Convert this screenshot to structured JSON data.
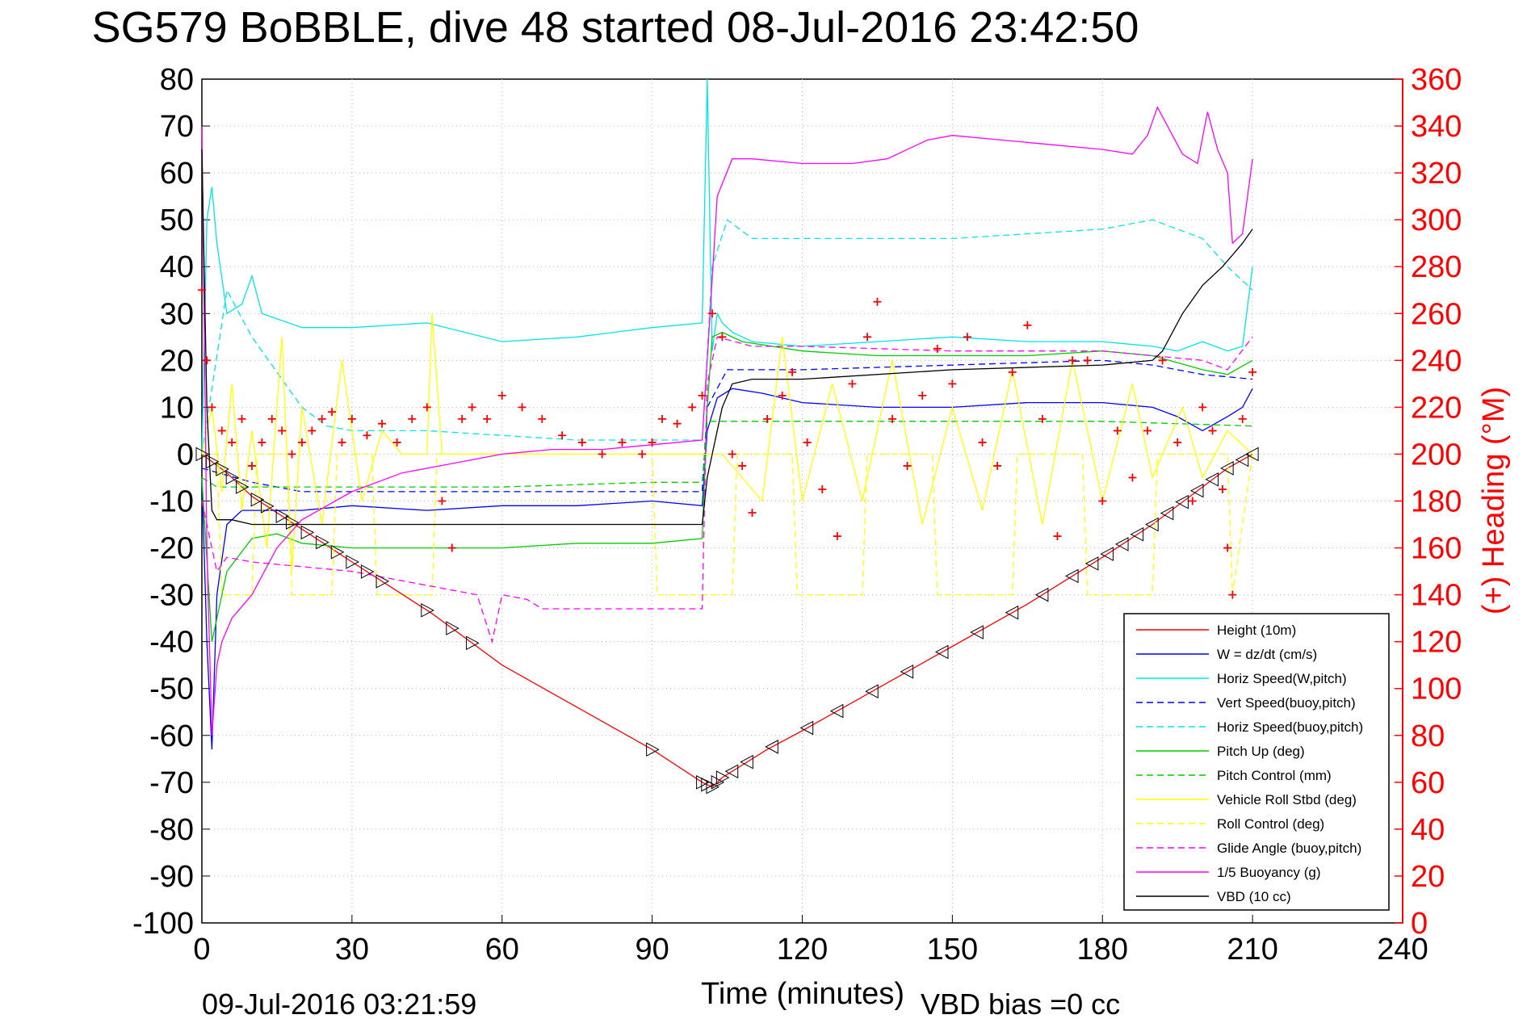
{
  "chart_data": {
    "type": "line",
    "title": "SG579 BoBBLE, dive 48 started 08-Jul-2016 23:42:50",
    "xlabel": "Time (minutes)",
    "ylabel_right": "(+) Heading (°M)",
    "footer_left": "09-Jul-2016 03:21:59",
    "footer_right": "VBD bias =0 cc",
    "xlim": [
      0,
      240
    ],
    "ylim": [
      -100,
      80
    ],
    "ylim_right": [
      0,
      360
    ],
    "x_ticks": [
      0,
      30,
      60,
      90,
      120,
      150,
      180,
      210,
      240
    ],
    "x_tick_labels": [
      "0",
      "30",
      "60",
      "90",
      "120",
      "150",
      "180",
      "210",
      "240"
    ],
    "y_ticks": [
      80,
      70,
      60,
      50,
      40,
      30,
      20,
      10,
      0,
      -10,
      -20,
      -30,
      -40,
      -50,
      -60,
      -70,
      -80,
      -90,
      -100
    ],
    "y_tick_labels": [
      "80",
      "70",
      "60",
      "50",
      "40",
      "30",
      "20",
      "10",
      "0",
      "-10",
      "-20",
      "-30",
      "-40",
      "-50",
      "-60",
      "-70",
      "-80",
      "-90",
      "-100"
    ],
    "y_right_ticks": [
      360,
      340,
      320,
      300,
      280,
      260,
      240,
      220,
      200,
      180,
      160,
      140,
      120,
      100,
      80,
      60,
      40,
      20,
      0
    ],
    "y_right_tick_labels": [
      "360",
      "340",
      "320",
      "300",
      "280",
      "260",
      "240",
      "220",
      "200",
      "180",
      "160",
      "140",
      "120",
      "100",
      "80",
      "60",
      "40",
      "20",
      "0"
    ],
    "grid": true,
    "legend_position": "bottom-right",
    "colors": {
      "right_axis": "#ff0000"
    },
    "legend": [
      {
        "label": "Height (10m)",
        "color": "#ff0000",
        "style": "solid"
      },
      {
        "label": "W = dz/dt (cm/s)",
        "color": "#0000ff",
        "style": "solid"
      },
      {
        "label": "Horiz Speed(W,pitch)",
        "color": "#00e5e5",
        "style": "solid"
      },
      {
        "label": "Vert Speed(buoy,pitch)",
        "color": "#0000ff",
        "style": "dashed"
      },
      {
        "label": "Horiz Speed(buoy,pitch)",
        "color": "#00e5e5",
        "style": "dashed"
      },
      {
        "label": "Pitch Up (deg)",
        "color": "#00cc00",
        "style": "solid"
      },
      {
        "label": "Pitch Control (mm)",
        "color": "#00cc00",
        "style": "dashed"
      },
      {
        "label": "Vehicle Roll Stbd (deg)",
        "color": "#ffff00",
        "style": "solid"
      },
      {
        "label": "Roll Control (deg)",
        "color": "#ffff00",
        "style": "dashed"
      },
      {
        "label": "Glide Angle (buoy,pitch)",
        "color": "#ff00ff",
        "style": "dashed"
      },
      {
        "label": "1/5 Buoyancy (g)",
        "color": "#ff00ff",
        "style": "solid"
      },
      {
        "label": "VBD (10 cc)",
        "color": "#000000",
        "style": "solid"
      }
    ],
    "series": [
      {
        "key": "height",
        "color": "#ff0000",
        "style": "solid",
        "x": [
          0,
          5,
          10,
          20,
          30,
          46,
          60,
          75,
          90,
          100,
          102,
          104,
          113,
          120,
          135,
          150,
          165,
          180,
          190,
          200,
          205,
          210
        ],
        "y": [
          0,
          -4,
          -9,
          -16,
          -23,
          -34,
          -45,
          -54,
          -63,
          -70,
          -71,
          -69,
          -63,
          -59,
          -50,
          -41,
          -32,
          -22,
          -15,
          -7,
          -3,
          0
        ]
      },
      {
        "key": "w",
        "color": "#0000ff",
        "style": "solid",
        "x": [
          0,
          1,
          2,
          3,
          5,
          8,
          12,
          20,
          30,
          45,
          60,
          75,
          90,
          100,
          101,
          103,
          106,
          112,
          120,
          135,
          150,
          165,
          180,
          190,
          195,
          200,
          205,
          208,
          210
        ],
        "y": [
          -5,
          -40,
          -63,
          -30,
          -15,
          -12,
          -12,
          -12,
          -11,
          -12,
          -11,
          -11,
          -10,
          -11,
          5,
          12,
          14,
          13,
          11,
          10,
          10,
          11,
          11,
          10,
          8,
          5,
          8,
          10,
          14
        ]
      },
      {
        "key": "horiz_w",
        "color": "#00e5e5",
        "style": "solid",
        "x": [
          0,
          1,
          2,
          3,
          5,
          8,
          10,
          12,
          20,
          30,
          45,
          60,
          75,
          90,
          100,
          101,
          102,
          103,
          104,
          106,
          110,
          120,
          135,
          150,
          165,
          180,
          190,
          195,
          200,
          205,
          208,
          210
        ],
        "y": [
          0,
          50,
          57,
          45,
          30,
          32,
          38,
          30,
          27,
          27,
          28,
          24,
          25,
          27,
          28,
          80,
          22,
          30,
          28,
          26,
          24,
          23,
          24,
          25,
          24,
          24,
          23,
          22,
          24,
          22,
          23,
          40
        ]
      },
      {
        "key": "vert_buoy",
        "color": "#0000ff",
        "style": "dashed",
        "x": [
          0,
          10,
          20,
          30,
          45,
          60,
          75,
          90,
          100,
          101,
          105,
          120,
          150,
          180,
          190,
          200,
          210
        ],
        "y": [
          -3,
          -6,
          -8,
          -8,
          -8,
          -8,
          -8,
          -8,
          -8,
          10,
          18,
          18,
          19,
          20,
          19,
          17,
          16
        ]
      },
      {
        "key": "horiz_buoy",
        "color": "#00e5e5",
        "style": "dashed",
        "x": [
          0,
          5,
          10,
          20,
          25,
          30,
          45,
          60,
          75,
          90,
          100,
          102,
          105,
          110,
          120,
          150,
          180,
          190,
          200,
          205,
          210
        ],
        "y": [
          0,
          35,
          25,
          10,
          6,
          5,
          5,
          4,
          3,
          3,
          3,
          40,
          50,
          46,
          46,
          46,
          48,
          50,
          46,
          40,
          35
        ]
      },
      {
        "key": "pitch_up",
        "color": "#00cc00",
        "style": "solid",
        "x": [
          0,
          2,
          5,
          10,
          15,
          20,
          30,
          45,
          60,
          75,
          90,
          100,
          101,
          102,
          104,
          108,
          120,
          135,
          150,
          165,
          180,
          190,
          200,
          205,
          210
        ],
        "y": [
          -5,
          -40,
          -25,
          -18,
          -17,
          -19,
          -20,
          -20,
          -20,
          -19,
          -19,
          -18,
          10,
          25,
          26,
          24,
          22,
          21,
          21,
          21,
          22,
          21,
          18,
          17,
          20
        ]
      },
      {
        "key": "pitch_ctrl",
        "color": "#00cc00",
        "style": "dashed",
        "x": [
          0,
          3,
          5,
          10,
          20,
          30,
          60,
          90,
          100,
          101,
          120,
          150,
          180,
          210
        ],
        "y": [
          -5,
          -7,
          -7,
          -7,
          -7,
          -7,
          -7,
          -6,
          -6,
          7,
          7,
          7,
          7,
          6
        ]
      },
      {
        "key": "roll",
        "color": "#ffff00",
        "style": "solid",
        "x": [
          0,
          2,
          4,
          6,
          8,
          10,
          13,
          16,
          18,
          20,
          24,
          28,
          32,
          36,
          40,
          45,
          46,
          48,
          52,
          58,
          64,
          70,
          76,
          82,
          88,
          90,
          94,
          100,
          104,
          108,
          112,
          116,
          120,
          126,
          132,
          138,
          144,
          150,
          156,
          162,
          168,
          174,
          180,
          186,
          190,
          196,
          200,
          205,
          210
        ],
        "y": [
          0,
          10,
          -8,
          15,
          -12,
          5,
          -20,
          25,
          -25,
          10,
          -15,
          20,
          -10,
          5,
          0,
          0,
          30,
          0,
          0,
          0,
          0,
          0,
          0,
          0,
          0,
          0,
          0,
          0,
          0,
          -5,
          -10,
          25,
          -10,
          15,
          -10,
          20,
          -15,
          10,
          -12,
          18,
          -15,
          20,
          -10,
          15,
          -5,
          10,
          -5,
          5,
          0
        ]
      },
      {
        "key": "roll_ctrl",
        "color": "#ffff00",
        "style": "dashed",
        "x": [
          0,
          3,
          4,
          10,
          11,
          17,
          18,
          26,
          27,
          34,
          35,
          46,
          47,
          90,
          91,
          106,
          107,
          118,
          119,
          132,
          133,
          146,
          147,
          162,
          163,
          176,
          177,
          190,
          191,
          205,
          206,
          210
        ],
        "y": [
          0,
          0,
          -30,
          -30,
          0,
          0,
          -30,
          -30,
          0,
          0,
          -30,
          -30,
          0,
          0,
          -30,
          -30,
          0,
          0,
          -30,
          -30,
          0,
          0,
          -30,
          -30,
          0,
          0,
          -30,
          -30,
          0,
          0,
          -30,
          0
        ]
      },
      {
        "key": "glide",
        "color": "#ff00ff",
        "style": "dashed",
        "x": [
          0,
          3,
          5,
          10,
          20,
          30,
          40,
          50,
          55,
          58,
          60,
          65,
          68,
          100,
          101,
          103,
          110,
          120,
          150,
          180,
          190,
          200,
          205,
          210
        ],
        "y": [
          -10,
          -25,
          -22,
          -23,
          -24,
          -25,
          -27,
          -29,
          -30,
          -40,
          -30,
          -31,
          -33,
          -33,
          15,
          25,
          23,
          23,
          22,
          22,
          21,
          20,
          18,
          25
        ]
      },
      {
        "key": "buoyancy",
        "color": "#ff00ff",
        "style": "solid",
        "x": [
          0,
          1,
          2,
          3,
          4,
          6,
          10,
          15,
          20,
          30,
          40,
          50,
          60,
          70,
          80,
          90,
          100,
          101,
          103,
          106,
          110,
          120,
          130,
          137,
          145,
          150,
          160,
          170,
          180,
          186,
          189,
          191,
          193,
          196,
          199,
          201,
          203,
          205,
          206,
          208,
          210
        ],
        "y": [
          70,
          -20,
          -60,
          -45,
          -40,
          -35,
          -30,
          -20,
          -14,
          -8,
          -4,
          -2,
          0,
          1,
          1,
          2,
          3,
          20,
          55,
          63,
          63,
          62,
          62,
          63,
          67,
          68,
          67,
          66,
          65,
          64,
          68,
          74,
          70,
          64,
          62,
          73,
          65,
          60,
          45,
          47,
          63
        ]
      },
      {
        "key": "vbd",
        "color": "#000000",
        "style": "solid",
        "x": [
          0,
          1,
          2,
          3,
          6,
          10,
          30,
          60,
          90,
          100,
          101,
          104,
          106,
          110,
          120,
          150,
          180,
          190,
          192,
          196,
          200,
          204,
          208,
          210
        ],
        "y": [
          65,
          10,
          -12,
          -14,
          -14,
          -15,
          -15,
          -15,
          -15,
          -15,
          -5,
          10,
          15,
          16,
          16,
          18,
          19,
          20,
          22,
          30,
          36,
          40,
          45,
          48
        ]
      }
    ],
    "heading": {
      "color": "#ff0000",
      "style": "markers",
      "x": [
        0,
        1,
        2,
        4,
        6,
        8,
        10,
        12,
        14,
        16,
        18,
        20,
        22,
        24,
        26,
        28,
        30,
        33,
        36,
        39,
        42,
        45,
        48,
        50,
        52,
        54,
        57,
        60,
        64,
        68,
        72,
        76,
        80,
        84,
        88,
        90,
        92,
        95,
        98,
        100,
        102,
        104,
        106,
        108,
        110,
        113,
        116,
        118,
        121,
        124,
        127,
        130,
        133,
        135,
        138,
        141,
        144,
        147,
        150,
        153,
        156,
        159,
        162,
        165,
        168,
        171,
        174,
        177,
        180,
        183,
        186,
        189,
        192,
        195,
        198,
        200,
        202,
        204,
        205,
        206,
        208,
        210
      ],
      "y": [
        270,
        240,
        220,
        210,
        205,
        215,
        195,
        205,
        215,
        210,
        200,
        205,
        210,
        215,
        218,
        205,
        215,
        208,
        213,
        205,
        215,
        220,
        180,
        160,
        215,
        220,
        215,
        225,
        220,
        215,
        208,
        205,
        200,
        205,
        200,
        205,
        215,
        213,
        220,
        225,
        260,
        250,
        200,
        195,
        175,
        215,
        225,
        235,
        205,
        185,
        165,
        230,
        250,
        265,
        215,
        195,
        225,
        245,
        230,
        250,
        205,
        195,
        235,
        255,
        215,
        165,
        240,
        240,
        180,
        210,
        190,
        210,
        240,
        205,
        180,
        220,
        210,
        185,
        160,
        140,
        215,
        235
      ]
    },
    "dive_markers": {
      "down_x": [
        0,
        2,
        4,
        6,
        8,
        11,
        13,
        16,
        18,
        21,
        24,
        27,
        30,
        33,
        36,
        45,
        50,
        54,
        90,
        100,
        101,
        102,
        103,
        104
      ],
      "up_x": [
        106,
        109,
        114,
        121,
        127,
        134,
        141,
        148,
        155,
        162,
        168,
        174,
        178,
        181,
        184,
        187,
        190,
        193,
        196,
        199,
        202,
        205,
        208,
        210
      ]
    }
  }
}
